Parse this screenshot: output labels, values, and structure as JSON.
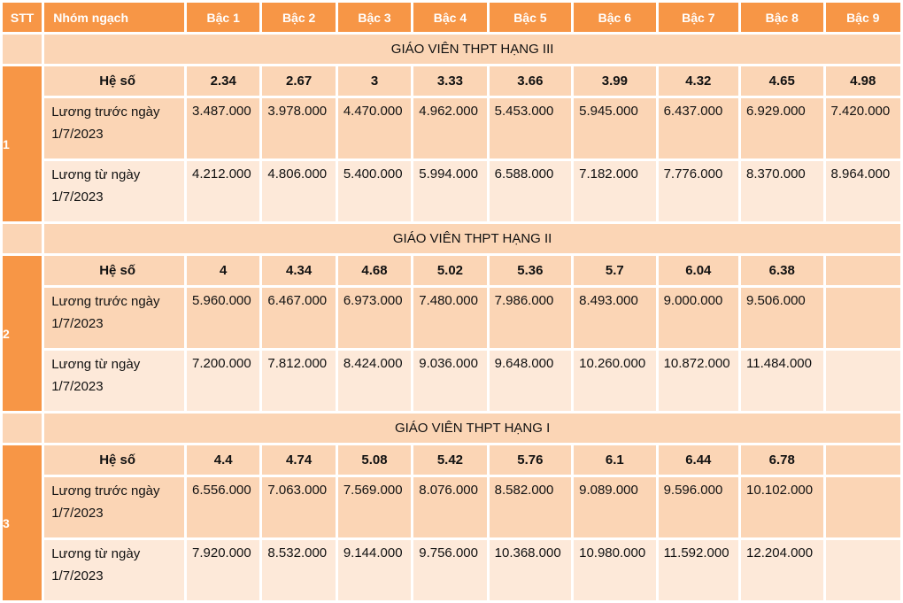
{
  "header": {
    "stt": "STT",
    "group": "Nhóm ngạch",
    "levels": [
      "Bậc 1",
      "Bậc 2",
      "Bậc 3",
      "Bậc 4",
      "Bậc 5",
      "Bậc 6",
      "Bậc 7",
      "Bậc 8",
      "Bậc 9"
    ]
  },
  "groups": [
    {
      "stt": "1",
      "rank": "GIÁO VIÊN THPT HẠNG III",
      "coef_label": "Hệ số",
      "coef": [
        "2.34",
        "2.67",
        "3",
        "3.33",
        "3.66",
        "3.99",
        "4.32",
        "4.65",
        "4.98"
      ],
      "before_label_1": "Lương trước ngày",
      "before_label_2": "1/7/2023",
      "before": [
        "3.487.000",
        "3.978.000",
        "4.470.000",
        "4.962.000",
        "5.453.000",
        "5.945.000",
        "6.437.000",
        "6.929.000",
        "7.420.000"
      ],
      "after_label_1": "Lương từ ngày",
      "after_label_2": "1/7/2023",
      "after": [
        "4.212.000",
        "4.806.000",
        "5.400.000",
        "5.994.000",
        "6.588.000",
        "7.182.000",
        "7.776.000",
        "8.370.000",
        "8.964.000"
      ]
    },
    {
      "stt": "2",
      "rank": "GIÁO VIÊN THPT HẠNG II",
      "coef_label": "Hệ số",
      "coef": [
        "4",
        "4.34",
        "4.68",
        "5.02",
        "5.36",
        "5.7",
        "6.04",
        "6.38",
        ""
      ],
      "before_label_1": "Lương trước ngày",
      "before_label_2": "1/7/2023",
      "before": [
        "5.960.000",
        "6.467.000",
        "6.973.000",
        "7.480.000",
        "7.986.000",
        "8.493.000",
        "9.000.000",
        "9.506.000",
        ""
      ],
      "after_label_1": "Lương từ ngày",
      "after_label_2": "1/7/2023",
      "after": [
        "7.200.000",
        "7.812.000",
        "8.424.000",
        "9.036.000",
        "9.648.000",
        "10.260.000",
        "10.872.000",
        "11.484.000",
        ""
      ]
    },
    {
      "stt": "3",
      "rank": "GIÁO VIÊN THPT HẠNG I",
      "coef_label": "Hệ số",
      "coef": [
        "4.4",
        "4.74",
        "5.08",
        "5.42",
        "5.76",
        "6.1",
        "6.44",
        "6.78",
        ""
      ],
      "before_label_1": "Lương trước ngày",
      "before_label_2": "1/7/2023",
      "before": [
        "6.556.000",
        "7.063.000",
        "7.569.000",
        "8.076.000",
        "8.582.000",
        "9.089.000",
        "9.596.000",
        "10.102.000",
        ""
      ],
      "after_label_1": "Lương từ ngày",
      "after_label_2": "1/7/2023",
      "after": [
        "7.920.000",
        "8.532.000",
        "9.144.000",
        "9.756.000",
        "10.368.000",
        "10.980.000",
        "11.592.000",
        "12.204.000",
        ""
      ]
    }
  ]
}
